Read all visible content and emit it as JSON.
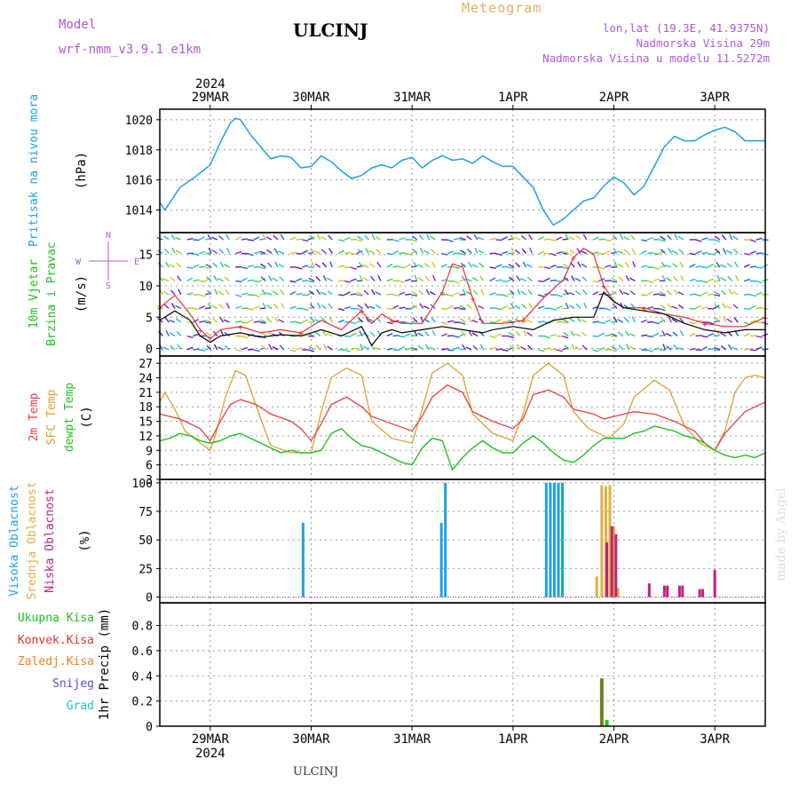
{
  "header": {
    "model_label": "Model",
    "model_name": "wrf-nmm_v3.9.1  e1km",
    "title": "Meteogram",
    "station": "ULCINJ",
    "lonlat": "lon,lat (19.3E, 41.9375N)",
    "altitude": "Nadmorska Visina 29m",
    "model_altitude": "Nadmorska Visina u modelu 11.5272m"
  },
  "footer": {
    "station": "ULCINJ",
    "credit": "made by Angel"
  },
  "colors": {
    "pressure": "#1ea0e8",
    "wind_avg": "#000000",
    "wind_gust": "#e83030",
    "t2m": "#e84040",
    "sfc": "#e0a030",
    "dew": "#20c020",
    "high_cloud": "#1ea0e8",
    "mid_cloud": "#e0b040",
    "low_cloud": "#c02080",
    "total_precip": "#20c020",
    "conv_precip": "#e83030",
    "froz_precip": "#f08020",
    "snow": "#5050e0",
    "graupel": "#20c0c0"
  },
  "chart_data": [
    {
      "type": "line",
      "panel": "pressure",
      "ylabel_outer": "Pritisak na nivou mora",
      "ylabel_unit": "(hPa)",
      "yticks": [
        1014,
        1016,
        1018,
        1020
      ],
      "ylim": [
        1012.5,
        1020.7
      ],
      "x_start_day": 28.5,
      "x_end_day": 34.5,
      "top_year": "2024",
      "x_ticks": [
        "29MAR",
        "30MAR",
        "31MAR",
        "1APR",
        "2APR",
        "3APR"
      ],
      "bottom_year": "2024",
      "series": [
        {
          "x": [
            28.5,
            28.55,
            28.7,
            28.85,
            29.0,
            29.1,
            29.2,
            29.25,
            29.3,
            29.4,
            29.5,
            29.6,
            29.7,
            29.8,
            29.9,
            30.0,
            30.1,
            30.2,
            30.3,
            30.4,
            30.5,
            30.6,
            30.7,
            30.8,
            30.9,
            31.0,
            31.1,
            31.2,
            31.3,
            31.4,
            31.5,
            31.6,
            31.7,
            31.8,
            31.9,
            32.0,
            32.1,
            32.2,
            32.3,
            32.4,
            32.5,
            32.6,
            32.7,
            32.8,
            32.9,
            33.0,
            33.1,
            33.2,
            33.3,
            33.4,
            33.5,
            33.6,
            33.7,
            33.8,
            33.9,
            34.0,
            34.1,
            34.2,
            34.3,
            34.4,
            34.5
          ],
          "y": [
            1014.5,
            1014.0,
            1015.5,
            1016.2,
            1017.0,
            1018.5,
            1019.8,
            1020.1,
            1020.0,
            1019.0,
            1018.2,
            1017.4,
            1017.6,
            1017.5,
            1016.8,
            1016.9,
            1017.6,
            1017.2,
            1016.6,
            1016.1,
            1016.3,
            1016.8,
            1017.0,
            1016.8,
            1017.3,
            1017.5,
            1016.8,
            1017.3,
            1017.6,
            1017.3,
            1017.4,
            1017.1,
            1017.6,
            1017.2,
            1016.9,
            1016.9,
            1016.2,
            1015.5,
            1014.0,
            1013.0,
            1013.4,
            1014.0,
            1014.6,
            1014.8,
            1015.6,
            1016.2,
            1015.8,
            1015.0,
            1015.6,
            1016.9,
            1018.2,
            1018.9,
            1018.6,
            1018.6,
            1019.0,
            1019.3,
            1019.5,
            1019.2,
            1018.6,
            1018.6,
            1018.6
          ]
        }
      ]
    },
    {
      "type": "line",
      "panel": "wind",
      "ylabel_outer": "10m Vjetar",
      "ylabel_inner": "Brzina i Pravac",
      "ylabel_unit": "(m/s)",
      "compass": {
        "n": "N",
        "w": "W",
        "e": "E",
        "s": "S"
      },
      "yticks": [
        0,
        5,
        10,
        15
      ],
      "ylim": [
        -1.2,
        18.5
      ],
      "series": [
        {
          "name": "avg",
          "x": [
            28.5,
            28.65,
            28.8,
            28.9,
            29.0,
            29.1,
            29.3,
            29.5,
            29.7,
            29.9,
            30.1,
            30.3,
            30.5,
            30.6,
            30.7,
            30.8,
            30.9,
            31.1,
            31.3,
            31.5,
            31.7,
            31.8,
            32.0,
            32.2,
            32.4,
            32.6,
            32.8,
            32.9,
            33.0,
            33.1,
            33.3,
            33.5,
            33.7,
            33.9,
            34.1,
            34.3,
            34.5
          ],
          "y": [
            4.5,
            6.0,
            4.5,
            2.0,
            1.0,
            2.0,
            2.5,
            1.8,
            2.2,
            2.0,
            3.0,
            2.0,
            3.5,
            0.5,
            2.5,
            3.0,
            2.5,
            3.0,
            3.5,
            3.0,
            2.5,
            3.0,
            3.5,
            3.0,
            4.5,
            5.0,
            5.0,
            9.0,
            7.5,
            6.5,
            6.0,
            5.5,
            4.0,
            3.0,
            2.5,
            3.0,
            3.0
          ]
        },
        {
          "name": "gust",
          "x": [
            28.5,
            28.65,
            28.8,
            28.9,
            29.0,
            29.1,
            29.3,
            29.5,
            29.7,
            29.9,
            30.1,
            30.3,
            30.5,
            30.6,
            30.7,
            30.8,
            30.9,
            31.1,
            31.3,
            31.4,
            31.5,
            31.6,
            31.7,
            31.9,
            32.1,
            32.3,
            32.5,
            32.6,
            32.7,
            32.8,
            32.9,
            33.0,
            33.1,
            33.3,
            33.5,
            33.7,
            33.9,
            34.1,
            34.3,
            34.5
          ],
          "y": [
            6.5,
            8.5,
            5.5,
            3.0,
            1.5,
            3.0,
            3.5,
            2.5,
            3.0,
            2.5,
            4.5,
            3.0,
            6.0,
            4.0,
            5.5,
            4.5,
            4.0,
            4.0,
            9.0,
            13.5,
            13.0,
            8.0,
            4.0,
            4.0,
            4.5,
            8.0,
            11.0,
            14.5,
            16.0,
            15.0,
            10.0,
            7.5,
            6.5,
            6.5,
            5.5,
            5.0,
            4.0,
            3.5,
            3.5,
            5.0
          ]
        }
      ]
    },
    {
      "type": "line",
      "panel": "temperature",
      "ylabel_outer": "2m Temp",
      "ylabel_mid": "SFC Temp",
      "ylabel_inner": "dewpt Temp",
      "ylabel_unit": "(C)",
      "yticks": [
        3,
        6,
        9,
        12,
        15,
        18,
        21,
        24,
        27
      ],
      "ylim": [
        3,
        28.5
      ],
      "series": [
        {
          "name": "t2m",
          "x": [
            28.5,
            28.7,
            28.9,
            29.0,
            29.1,
            29.2,
            29.3,
            29.45,
            29.6,
            29.8,
            29.9,
            30.0,
            30.1,
            30.2,
            30.35,
            30.5,
            30.6,
            30.8,
            31.0,
            31.1,
            31.2,
            31.35,
            31.5,
            31.6,
            31.8,
            32.0,
            32.1,
            32.2,
            32.35,
            32.5,
            32.6,
            32.8,
            32.9,
            33.0,
            33.1,
            33.2,
            33.4,
            33.6,
            33.8,
            33.9,
            34.0,
            34.1,
            34.3,
            34.5
          ],
          "y": [
            16.5,
            15.5,
            13.5,
            11.0,
            15.0,
            18.5,
            19.5,
            18.5,
            16.5,
            15.0,
            13.5,
            11.0,
            14.5,
            18.5,
            20.0,
            18.0,
            16.0,
            14.5,
            13.0,
            16.0,
            20.0,
            22.5,
            21.0,
            17.0,
            15.0,
            13.5,
            15.5,
            20.5,
            21.5,
            20.0,
            17.5,
            16.5,
            15.5,
            16.0,
            16.5,
            17.0,
            16.5,
            15.0,
            13.0,
            10.5,
            9.0,
            12.5,
            17.0,
            19.0
          ]
        },
        {
          "name": "sfc",
          "x": [
            28.5,
            28.55,
            28.65,
            28.75,
            28.9,
            29.0,
            29.05,
            29.15,
            29.25,
            29.35,
            29.5,
            29.6,
            29.8,
            29.9,
            30.0,
            30.1,
            30.2,
            30.35,
            30.5,
            30.6,
            30.8,
            31.0,
            31.1,
            31.2,
            31.35,
            31.5,
            31.6,
            31.8,
            32.0,
            32.1,
            32.2,
            32.35,
            32.5,
            32.6,
            32.75,
            32.85,
            32.95,
            33.1,
            33.2,
            33.4,
            33.55,
            33.7,
            33.85,
            34.0,
            34.1,
            34.2,
            34.3,
            34.4,
            34.5
          ],
          "y": [
            19.0,
            21.0,
            17.5,
            13.0,
            10.5,
            9.0,
            12.0,
            20.0,
            25.5,
            24.5,
            15.5,
            10.0,
            8.5,
            8.5,
            8.5,
            17.0,
            24.0,
            26.0,
            24.5,
            15.0,
            11.5,
            10.5,
            17.5,
            25.0,
            27.0,
            24.5,
            16.5,
            12.5,
            11.0,
            16.5,
            24.5,
            27.0,
            24.5,
            17.0,
            13.5,
            12.5,
            11.5,
            14.5,
            20.0,
            23.5,
            21.5,
            14.0,
            10.5,
            9.0,
            13.0,
            21.0,
            24.0,
            24.5,
            24.0
          ]
        },
        {
          "name": "dewpoint",
          "x": [
            28.5,
            28.6,
            28.7,
            28.8,
            28.9,
            29.0,
            29.1,
            29.2,
            29.3,
            29.4,
            29.5,
            29.6,
            29.7,
            29.8,
            29.9,
            30.0,
            30.1,
            30.2,
            30.3,
            30.4,
            30.5,
            30.6,
            30.7,
            30.8,
            30.9,
            31.0,
            31.1,
            31.2,
            31.3,
            31.4,
            31.5,
            31.6,
            31.7,
            31.8,
            31.9,
            32.0,
            32.1,
            32.2,
            32.3,
            32.4,
            32.5,
            32.6,
            32.7,
            32.8,
            32.9,
            33.0,
            33.1,
            33.2,
            33.3,
            33.4,
            33.5,
            33.6,
            33.7,
            33.8,
            33.9,
            34.0,
            34.1,
            34.2,
            34.3,
            34.4,
            34.5
          ],
          "y": [
            11.0,
            11.5,
            12.5,
            12.0,
            11.0,
            10.5,
            11.0,
            12.0,
            12.5,
            11.5,
            10.5,
            9.5,
            8.5,
            9.0,
            8.5,
            8.5,
            9.0,
            12.5,
            13.5,
            11.5,
            10.0,
            9.5,
            8.5,
            7.5,
            6.5,
            6.0,
            9.5,
            11.5,
            11.0,
            5.0,
            7.5,
            9.5,
            11.0,
            9.5,
            8.5,
            8.5,
            10.5,
            12.0,
            10.5,
            8.5,
            7.0,
            6.5,
            8.0,
            10.0,
            11.5,
            11.5,
            11.5,
            12.5,
            13.0,
            14.0,
            13.5,
            13.0,
            12.0,
            11.5,
            10.5,
            9.0,
            8.0,
            7.5,
            8.0,
            7.5,
            8.5
          ]
        }
      ]
    },
    {
      "type": "bar",
      "panel": "cloud",
      "ylabel_outer": "Visoka Oblacnost",
      "ylabel_mid": "Srednja Oblacnost",
      "ylabel_inner": "Niska Oblacnost",
      "ylabel_unit": "(%)",
      "yticks": [
        0,
        25,
        50,
        75,
        100
      ],
      "ylim": [
        -5,
        103
      ],
      "series": [
        {
          "name": "high",
          "x": [
            29.92,
            31.29,
            31.33,
            32.33,
            32.37,
            32.41,
            32.45,
            32.49
          ],
          "values": [
            65,
            65,
            100,
            100,
            100,
            100,
            100,
            100
          ]
        },
        {
          "name": "mid",
          "x": [
            32.83,
            32.88,
            32.92,
            32.96,
            33.0,
            33.04
          ],
          "values": [
            18,
            98,
            97,
            98,
            62,
            8
          ]
        },
        {
          "name": "low",
          "x": [
            32.93,
            32.98,
            33.02,
            33.35,
            33.5,
            33.53,
            33.65,
            33.68,
            33.85,
            33.88,
            34.0
          ],
          "values": [
            48,
            62,
            55,
            12,
            10,
            10,
            10,
            10,
            7,
            7,
            24
          ]
        }
      ]
    },
    {
      "type": "bar",
      "panel": "precip",
      "legend": [
        "Ukupna Kisa",
        "Konvek.Kisa",
        "Zaledj.Kisa",
        "Snijeg",
        "Grad"
      ],
      "ylabel_unit": "1hr Precip (mm)",
      "yticks": [
        0,
        0.2,
        0.4,
        0.6,
        0.8
      ],
      "ylim": [
        0,
        0.98
      ],
      "series": [
        {
          "name": "total",
          "x": [
            32.88,
            32.93
          ],
          "values": [
            0.38,
            0.05
          ]
        }
      ]
    }
  ]
}
